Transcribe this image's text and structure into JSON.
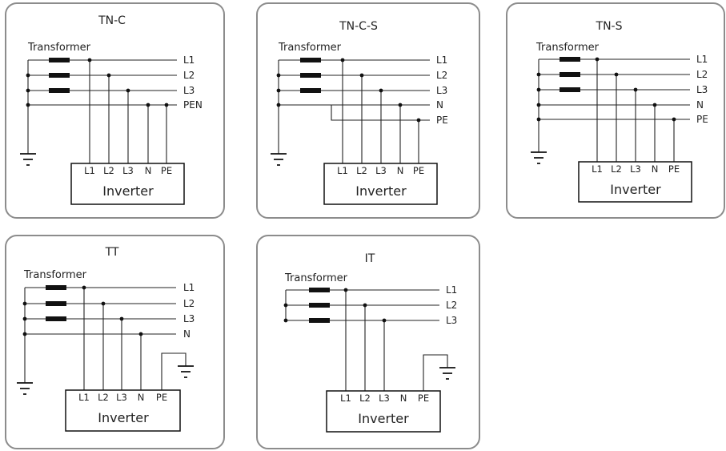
{
  "colors": {
    "border": "#8c8c8c",
    "ink": "#222222"
  },
  "diagrams": [
    {
      "title": "TN-C",
      "transformer_label": "Transformer",
      "line_labels": [
        "L1",
        "L2",
        "L3",
        "PEN"
      ],
      "terminals": [
        "L1",
        "L2",
        "L3",
        "N",
        "PE"
      ],
      "inverter_label": "Inverter",
      "icons": [
        "ground-icon"
      ]
    },
    {
      "title": "TN-C-S",
      "transformer_label": "Transformer",
      "line_labels": [
        "L1",
        "L2",
        "L3",
        "N",
        "PE"
      ],
      "terminals": [
        "L1",
        "L2",
        "L3",
        "N",
        "PE"
      ],
      "inverter_label": "Inverter",
      "icons": [
        "ground-icon"
      ]
    },
    {
      "title": "TN-S",
      "transformer_label": "Transformer",
      "line_labels": [
        "L1",
        "L2",
        "L3",
        "N",
        "PE"
      ],
      "terminals": [
        "L1",
        "L2",
        "L3",
        "N",
        "PE"
      ],
      "inverter_label": "Inverter",
      "icons": [
        "ground-icon"
      ]
    },
    {
      "title": "TT",
      "transformer_label": "Transformer",
      "line_labels": [
        "L1",
        "L2",
        "L3",
        "N"
      ],
      "terminals": [
        "L1",
        "L2",
        "L3",
        "N",
        "PE"
      ],
      "inverter_label": "Inverter",
      "icons": [
        "ground-icon",
        "ground-icon"
      ]
    },
    {
      "title": "IT",
      "transformer_label": "Transformer",
      "line_labels": [
        "L1",
        "L2",
        "L3"
      ],
      "terminals": [
        "L1",
        "L2",
        "L3",
        "N",
        "PE"
      ],
      "inverter_label": "Inverter",
      "icons": [
        "ground-icon"
      ]
    }
  ]
}
